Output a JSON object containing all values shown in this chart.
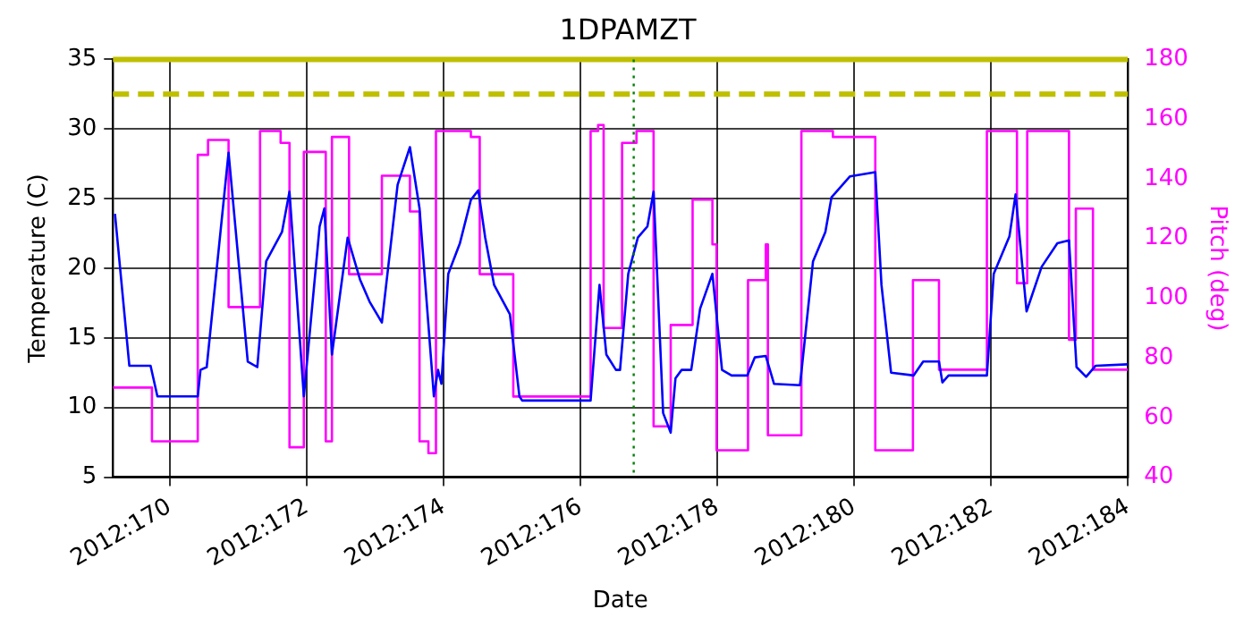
{
  "chart_data": {
    "type": "line",
    "title": "1DPAMZT",
    "xlabel": "Date",
    "ylabel": "Temperature (C)",
    "y2label": "Pitch (deg)",
    "xlim": [
      "2012-06-17T04:05",
      "2012-07-02"
    ],
    "xticks": [
      {
        "value": "2012-06-18",
        "label": "2012:170"
      },
      {
        "value": "2012-06-20",
        "label": "2012:172"
      },
      {
        "value": "2012-06-22",
        "label": "2012:174"
      },
      {
        "value": "2012-06-24",
        "label": "2012:176"
      },
      {
        "value": "2012-06-26",
        "label": "2012:178"
      },
      {
        "value": "2012-06-28",
        "label": "2012:180"
      },
      {
        "value": "2012-06-30",
        "label": "2012:182"
      },
      {
        "value": "2012-07-02",
        "label": "2012:184"
      }
    ],
    "ylim": [
      5,
      35
    ],
    "yticks": [
      5,
      10,
      15,
      20,
      25,
      30,
      35
    ],
    "y2lim": [
      40,
      180
    ],
    "y2ticks": [
      40,
      60,
      80,
      100,
      120,
      140,
      160,
      180
    ],
    "grid": true,
    "marker": "none",
    "series": [
      {
        "type": "line",
        "color": "#0000ff",
        "x": [
          "2012-06-17T04:48",
          "2012-06-17T09:50",
          "2012-06-17T17:17",
          "2012-06-17T19:41",
          "2012-06-18T09:50",
          "2012-06-18T10:48",
          "2012-06-18T12:58",
          "2012-06-18T20:38",
          "2012-06-19T03:22",
          "2012-06-19T06:43",
          "2012-06-19T09:50",
          "2012-06-19T15:22",
          "2012-06-19T18:00",
          "2012-06-19T23:02",
          "2012-06-20T04:34",
          "2012-06-20T06:14",
          "2012-06-20T08:53",
          "2012-06-20T14:24",
          "2012-06-20T18:43",
          "2012-06-20T22:05",
          "2012-06-21T02:24",
          "2012-06-21T07:55",
          "2012-06-21T12:14",
          "2012-06-21T15:36",
          "2012-06-21T20:38",
          "2012-06-21T22:05",
          "2012-06-21T23:17",
          "2012-06-22T01:41",
          "2012-06-22T05:46",
          "2012-06-22T09:36",
          "2012-06-22T12:14",
          "2012-06-22T14:38",
          "2012-06-22T17:46",
          "2012-06-22T23:17",
          "2012-06-23T02:38",
          "2012-06-23T03:36",
          "2012-06-24T03:36",
          "2012-06-24T06:43",
          "2012-06-24T09:07",
          "2012-06-24T12:29",
          "2012-06-24T13:55",
          "2012-06-24T16:48",
          "2012-06-24T20:10",
          "2012-06-24T23:31",
          "2012-06-25T01:41",
          "2012-06-25T05:02",
          "2012-06-25T07:41",
          "2012-06-25T09:22",
          "2012-06-25T11:31",
          "2012-06-25T14:53",
          "2012-06-25T18:00",
          "2012-06-25T22:19",
          "2012-06-26T01:41",
          "2012-06-26T05:02",
          "2012-06-26T10:34",
          "2012-06-26T13:12",
          "2012-06-26T17:02",
          "2012-06-26T19:55",
          "2012-06-27T05:02",
          "2012-06-27T09:36",
          "2012-06-27T13:55",
          "2012-06-27T16:05",
          "2012-06-27T22:34",
          "2012-06-28T07:26",
          "2012-06-28T09:36",
          "2012-06-28T12:58",
          "2012-06-28T20:53",
          "2012-06-29T00:14",
          "2012-06-29T05:46",
          "2012-06-29T06:58",
          "2012-06-29T09:07",
          "2012-06-29T22:34",
          "2012-06-30T00:58",
          "2012-06-30T06:29",
          "2012-06-30T08:38",
          "2012-06-30T12:29",
          "2012-06-30T17:46",
          "2012-06-30T23:17",
          "2012-07-01T03:22",
          "2012-07-01T06:00",
          "2012-07-01T09:22",
          "2012-07-01T12:43",
          "2012-07-02T00:00"
        ],
        "values": [
          23.9,
          13.0,
          13.0,
          10.8,
          10.8,
          12.7,
          12.9,
          28.3,
          13.3,
          12.9,
          20.5,
          22.6,
          25.5,
          10.8,
          23.0,
          24.3,
          13.8,
          22.2,
          19.2,
          17.6,
          16.1,
          26.0,
          28.7,
          24.3,
          10.8,
          12.7,
          11.7,
          19.6,
          21.8,
          24.9,
          25.6,
          22.2,
          18.8,
          16.7,
          10.8,
          10.5,
          10.5,
          18.8,
          13.8,
          12.7,
          12.7,
          19.6,
          22.2,
          23.0,
          25.5,
          9.6,
          8.2,
          12.1,
          12.7,
          12.7,
          17.1,
          19.6,
          12.7,
          12.3,
          12.3,
          13.6,
          13.7,
          11.7,
          11.6,
          20.5,
          22.6,
          25.1,
          26.6,
          26.9,
          18.8,
          12.5,
          12.3,
          13.3,
          13.3,
          11.8,
          12.3,
          12.3,
          19.6,
          22.3,
          25.3,
          16.9,
          20.1,
          21.8,
          22.0,
          12.9,
          12.2,
          13.0,
          13.1
        ]
      },
      {
        "type": "step",
        "axis": "y2",
        "color": "#ff00ff",
        "x": [
          "2012-06-17T04:05",
          "2012-06-17T17:46",
          "2012-06-18T09:50",
          "2012-06-18T13:26",
          "2012-06-18T20:38",
          "2012-06-19T07:41",
          "2012-06-19T14:53",
          "2012-06-19T18:00",
          "2012-06-19T23:02",
          "2012-06-20T06:43",
          "2012-06-20T08:53",
          "2012-06-20T14:53",
          "2012-06-21T02:24",
          "2012-06-21T12:14",
          "2012-06-21T15:36",
          "2012-06-21T18:43",
          "2012-06-21T21:22",
          "2012-06-22T09:36",
          "2012-06-22T12:43",
          "2012-06-23T00:29",
          "2012-06-24T03:36",
          "2012-06-24T06:14",
          "2012-06-24T08:10",
          "2012-06-24T14:38",
          "2012-06-24T19:41",
          "2012-06-25T01:41",
          "2012-06-25T07:41",
          "2012-06-25T15:22",
          "2012-06-25T22:19",
          "2012-06-25T23:46",
          "2012-06-26T10:48",
          "2012-06-26T17:02",
          "2012-06-26T17:46",
          "2012-06-27T05:31",
          "2012-06-27T16:34",
          "2012-06-28T07:26",
          "2012-06-28T20:38",
          "2012-06-29T05:46",
          "2012-06-29T22:34",
          "2012-06-30T09:07",
          "2012-06-30T12:43",
          "2012-07-01T03:22",
          "2012-07-01T05:46",
          "2012-07-01T11:46",
          "2012-07-02T00:00"
        ],
        "values": [
          70,
          52,
          148,
          153,
          97,
          156,
          152,
          50,
          149,
          52,
          154,
          108,
          141,
          129,
          52,
          48,
          156,
          154,
          108,
          67,
          156,
          158,
          90,
          152,
          156,
          57,
          91,
          133,
          118,
          49,
          106,
          118,
          54,
          156,
          154,
          49,
          106,
          76,
          156,
          105,
          156,
          86,
          130,
          76,
          76
        ]
      }
    ],
    "ref_lines": [
      {
        "axis": "y",
        "value": 35,
        "color": "#bfbf00",
        "line_style": "solid"
      },
      {
        "axis": "y",
        "value": 32.5,
        "color": "#bfbf00",
        "line_style": "dashed"
      },
      {
        "axis": "x",
        "value": "2012-06-24T18:43",
        "color": "#008000",
        "line_style": "dotted"
      }
    ]
  }
}
